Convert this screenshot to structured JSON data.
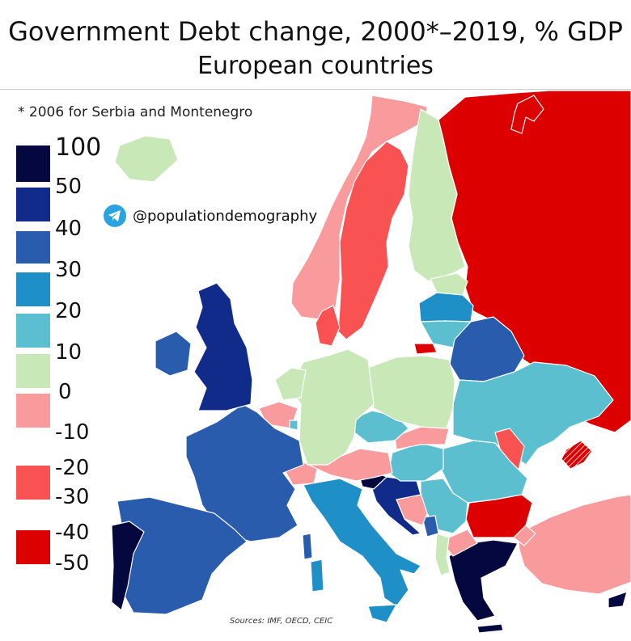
{
  "title": {
    "line1": "Government Debt change, 2000*–2019, % GDP",
    "line2": "European countries"
  },
  "footnote": "* 2006 for Serbia and Montenegro",
  "social": {
    "handle": "@populationdemography",
    "icon": "telegram-icon"
  },
  "sources": "Sources: IMF, OECD, CEIC",
  "legend": {
    "labels": [
      "100",
      "50",
      "40",
      "30",
      "20",
      "10",
      "0",
      "-10",
      "-20",
      "-30",
      "-40",
      "-50"
    ],
    "bins": [
      {
        "range": "50 to 100",
        "color": "#05073f"
      },
      {
        "range": "40 to 50",
        "color": "#112b8a"
      },
      {
        "range": "30 to 40",
        "color": "#2a5cad"
      },
      {
        "range": "20 to 30",
        "color": "#1f8fc8"
      },
      {
        "range": "10 to 20",
        "color": "#5bbfd0"
      },
      {
        "range": "0 to 10",
        "color": "#c8e8b8"
      },
      {
        "range": "-10 to 0",
        "color": "#f99a9c"
      },
      {
        "range": "-30 to -20",
        "color": "#f85252"
      },
      {
        "range": "-50 to -40",
        "color": "#dd0000"
      }
    ]
  },
  "countries": [
    {
      "name": "Iceland",
      "bin": "0 to 10"
    },
    {
      "name": "Norway",
      "bin": "-10 to 0"
    },
    {
      "name": "Sweden",
      "bin": "-30 to -20"
    },
    {
      "name": "Finland",
      "bin": "0 to 10"
    },
    {
      "name": "Russia",
      "bin": "-50 to -40"
    },
    {
      "name": "Estonia",
      "bin": "0 to 10"
    },
    {
      "name": "Latvia",
      "bin": "20 to 30"
    },
    {
      "name": "Lithuania",
      "bin": "10 to 20"
    },
    {
      "name": "Belarus",
      "bin": "30 to 40"
    },
    {
      "name": "Ukraine",
      "bin": "10 to 20"
    },
    {
      "name": "Crimea",
      "bin": "-50 to -40"
    },
    {
      "name": "Moldova",
      "bin": "-30 to -20"
    },
    {
      "name": "Romania",
      "bin": "10 to 20"
    },
    {
      "name": "Bulgaria",
      "bin": "-50 to -40"
    },
    {
      "name": "Turkey",
      "bin": "-10 to 0"
    },
    {
      "name": "Greece",
      "bin": "50 to 100"
    },
    {
      "name": "North Macedonia",
      "bin": "-10 to 0"
    },
    {
      "name": "Albania",
      "bin": "0 to 10"
    },
    {
      "name": "Serbia",
      "bin": "10 to 20"
    },
    {
      "name": "Montenegro",
      "bin": "30 to 40"
    },
    {
      "name": "Bosnia and Herzegovina",
      "bin": "-10 to 0"
    },
    {
      "name": "Croatia",
      "bin": "40 to 50"
    },
    {
      "name": "Slovenia",
      "bin": "50 to 100"
    },
    {
      "name": "Hungary",
      "bin": "10 to 20"
    },
    {
      "name": "Slovakia",
      "bin": "-10 to 0"
    },
    {
      "name": "Czechia",
      "bin": "10 to 20"
    },
    {
      "name": "Austria",
      "bin": "-10 to 0"
    },
    {
      "name": "Switzerland",
      "bin": "-10 to 0"
    },
    {
      "name": "Poland",
      "bin": "0 to 10"
    },
    {
      "name": "Germany",
      "bin": "0 to 10"
    },
    {
      "name": "Denmark",
      "bin": "-30 to -20"
    },
    {
      "name": "Netherlands",
      "bin": "0 to 10"
    },
    {
      "name": "Belgium",
      "bin": "-10 to 0"
    },
    {
      "name": "Luxembourg",
      "bin": "10 to 20"
    },
    {
      "name": "France",
      "bin": "30 to 40"
    },
    {
      "name": "United Kingdom",
      "bin": "40 to 50"
    },
    {
      "name": "Ireland",
      "bin": "30 to 40"
    },
    {
      "name": "Spain",
      "bin": "30 to 40"
    },
    {
      "name": "Portugal",
      "bin": "50 to 100"
    },
    {
      "name": "Italy",
      "bin": "20 to 30"
    },
    {
      "name": "Cyprus",
      "bin": "50 to 100"
    }
  ]
}
